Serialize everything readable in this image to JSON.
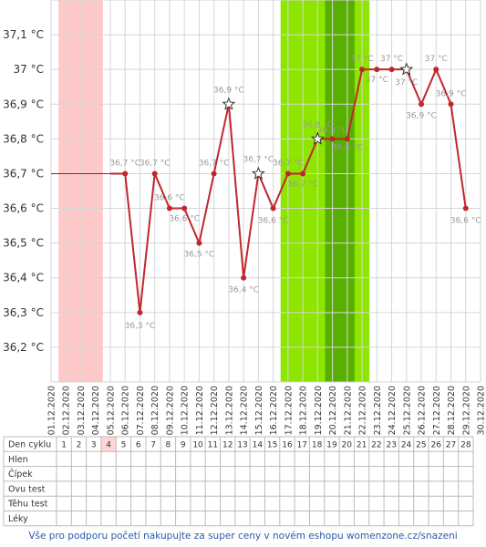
{
  "chart_data": {
    "type": "line",
    "unit": "°C",
    "ylim": [
      36.1,
      37.2
    ],
    "y_ticks": [
      36.2,
      36.3,
      36.4,
      36.5,
      36.6,
      36.7,
      36.8,
      36.9,
      37.0,
      37.1
    ],
    "y_tick_labels": [
      "36,2 °C",
      "36,3 °C",
      "36,4 °C",
      "36,5 °C",
      "36,6 °C",
      "36,7 °C",
      "36,8 °C",
      "36,9 °C",
      "37 °C",
      "37,1 °C"
    ],
    "x": [
      "01.12.2020",
      "02.12.2020",
      "03.12.2020",
      "04.12.2020",
      "05.12.2020",
      "06.12.2020",
      "07.12.2020",
      "08.12.2020",
      "09.12.2020",
      "10.12.2020",
      "11.12.2020",
      "12.12.2020",
      "13.12.2020",
      "14.12.2020",
      "15.12.2020",
      "16.12.2020",
      "17.12.2020",
      "18.12.2020",
      "19.12.2020",
      "20.12.2020",
      "21.12.2020",
      "22.12.2020",
      "23.12.2020",
      "24.12.2020",
      "25.12.2020",
      "26.12.2020",
      "27.12.2020",
      "28.12.2020",
      "29.12.2020",
      "30.12.2020"
    ],
    "baseline": {
      "from": "01.12.2020",
      "to": "05.12.2020",
      "value": 36.7
    },
    "series": [
      {
        "points": [
          {
            "x": "05.12.2020",
            "y": 36.7,
            "label": ""
          },
          {
            "x": "06.12.2020",
            "y": 36.7,
            "label": "36,7 °C"
          },
          {
            "x": "07.12.2020",
            "y": 36.3,
            "label": "36,3 °C"
          },
          {
            "x": "08.12.2020",
            "y": 36.7,
            "label": "36,7 °C"
          },
          {
            "x": "09.12.2020",
            "y": 36.6,
            "label": "36,6 °C"
          },
          {
            "x": "10.12.2020",
            "y": 36.6,
            "label": "36,6 °C"
          },
          {
            "x": "11.12.2020",
            "y": 36.5,
            "label": "36,5 °C"
          },
          {
            "x": "12.12.2020",
            "y": 36.7,
            "label": "36,7 °C"
          },
          {
            "x": "13.12.2020",
            "y": 36.9,
            "label": "36,9 °C",
            "marker": "star"
          },
          {
            "x": "14.12.2020",
            "y": 36.4,
            "label": "36,4 °C"
          },
          {
            "x": "15.12.2020",
            "y": 36.7,
            "label": "36,7 °C",
            "marker": "star"
          },
          {
            "x": "16.12.2020",
            "y": 36.6,
            "label": "36,6 °C"
          },
          {
            "x": "17.12.2020",
            "y": 36.7,
            "label": "36,7 °C"
          },
          {
            "x": "18.12.2020",
            "y": 36.7,
            "label": "36,7 °C"
          },
          {
            "x": "19.12.2020",
            "y": 36.8,
            "label": "36,8 °C",
            "marker": "star"
          },
          {
            "x": "20.12.2020",
            "y": 36.8,
            "label": "36,8 °C"
          },
          {
            "x": "21.12.2020",
            "y": 36.8,
            "label": "36,8 °C"
          },
          {
            "x": "22.12.2020",
            "y": 37.0,
            "label": "37 °C"
          },
          {
            "x": "23.12.2020",
            "y": 37.0,
            "label": "37 °C"
          },
          {
            "x": "24.12.2020",
            "y": 37.0,
            "label": "37 °C"
          },
          {
            "x": "25.12.2020",
            "y": 37.0,
            "label": "37 °C",
            "marker": "star"
          },
          {
            "x": "26.12.2020",
            "y": 36.9,
            "label": "36,9 °C"
          },
          {
            "x": "27.12.2020",
            "y": 37.0,
            "label": "37 °C"
          },
          {
            "x": "28.12.2020",
            "y": 36.9,
            "label": "36,9 °C"
          },
          {
            "x": "29.12.2020",
            "y": 36.6,
            "label": "36,6 °C"
          }
        ]
      }
    ],
    "bands": [
      {
        "from": "02.12.2020",
        "to": "04.12.2020",
        "color": "#ffc9c9"
      },
      {
        "from": "17.12.2020",
        "to": "22.12.2020",
        "color": "#8ee600"
      },
      {
        "from": "20.12.2020",
        "to": "21.12.2020",
        "color": "#57b000"
      }
    ],
    "line_color": "#c0272d",
    "grid": true
  },
  "cycle_grid": {
    "rows": [
      "Den cyklu",
      "Hlen",
      "Čípek",
      "Ovu test",
      "Těhu test",
      "Léky"
    ],
    "days": [
      "1",
      "2",
      "3",
      "4",
      "5",
      "6",
      "7",
      "8",
      "9",
      "10",
      "11",
      "12",
      "13",
      "14",
      "15",
      "16",
      "17",
      "18",
      "19",
      "20",
      "21",
      "22",
      "23",
      "24",
      "25",
      "26",
      "27",
      "28"
    ],
    "highlight_day": "4",
    "highlight_color": "#ffd5d5"
  },
  "footer": {
    "text": "Vše pro podporu početí nakupujte za super ceny v novém eshopu womenzone.cz/snazeni"
  }
}
